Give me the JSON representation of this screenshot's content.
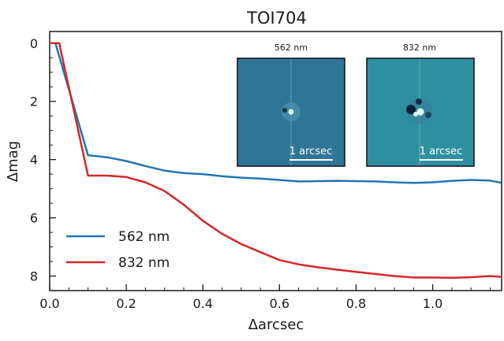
{
  "chart_data": {
    "type": "line",
    "title": "TOI704",
    "xlabel": "Δarcsec",
    "ylabel": "Δmag",
    "xlim": [
      0.0,
      1.18
    ],
    "ylim": [
      8.5,
      -0.4
    ],
    "x_ticks": [
      "0.0",
      "0.2",
      "0.4",
      "0.6",
      "0.8",
      "1.0"
    ],
    "x_tick_values": [
      0.0,
      0.2,
      0.4,
      0.6,
      0.8,
      1.0
    ],
    "y_ticks": [
      "0",
      "2",
      "4",
      "6",
      "8"
    ],
    "y_tick_values": [
      0,
      2,
      4,
      6,
      8
    ],
    "legend_position": "lower-left",
    "series": [
      {
        "name": "562 nm",
        "color": "#1f77b4",
        "x": [
          0.0,
          0.015,
          0.1,
          0.15,
          0.2,
          0.25,
          0.3,
          0.35,
          0.4,
          0.45,
          0.5,
          0.55,
          0.6,
          0.65,
          0.7,
          0.75,
          0.8,
          0.85,
          0.9,
          0.95,
          1.0,
          1.05,
          1.1,
          1.15,
          1.18
        ],
        "values": [
          0.0,
          0.0,
          3.85,
          3.92,
          4.05,
          4.22,
          4.38,
          4.46,
          4.5,
          4.57,
          4.62,
          4.65,
          4.7,
          4.75,
          4.74,
          4.73,
          4.74,
          4.75,
          4.78,
          4.8,
          4.78,
          4.73,
          4.7,
          4.72,
          4.8
        ]
      },
      {
        "name": "832 nm",
        "color": "#d62728",
        "x": [
          0.0,
          0.025,
          0.1,
          0.15,
          0.2,
          0.25,
          0.3,
          0.35,
          0.4,
          0.45,
          0.5,
          0.55,
          0.6,
          0.65,
          0.7,
          0.75,
          0.8,
          0.85,
          0.9,
          0.95,
          1.0,
          1.05,
          1.1,
          1.15,
          1.18
        ],
        "values": [
          0.0,
          0.0,
          4.55,
          4.55,
          4.6,
          4.78,
          5.08,
          5.55,
          6.1,
          6.55,
          6.9,
          7.18,
          7.45,
          7.6,
          7.7,
          7.78,
          7.86,
          7.93,
          8.0,
          8.05,
          8.05,
          8.06,
          8.04,
          8.0,
          8.03
        ]
      }
    ]
  },
  "insets": [
    {
      "label": "562 nm",
      "scale_label": "1 arcsec",
      "background": "#2f7596",
      "source": "#d9ffe8"
    },
    {
      "label": "832 nm",
      "scale_label": "1 arcsec",
      "background": "#2e8fa1",
      "source": "#e6fff5"
    }
  ]
}
